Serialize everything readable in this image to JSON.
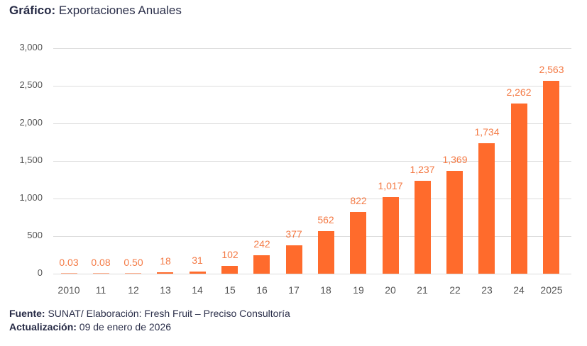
{
  "title": {
    "prefix": "Gráfico:",
    "text": " Exportaciones Anuales"
  },
  "chart_data": {
    "type": "bar",
    "title": "Gráfico: Exportaciones Anuales",
    "xlabel": "",
    "ylabel": "",
    "categories": [
      "2010",
      "11",
      "12",
      "13",
      "14",
      "15",
      "16",
      "17",
      "18",
      "19",
      "20",
      "21",
      "22",
      "23",
      "24",
      "2025"
    ],
    "values": [
      0.03,
      0.08,
      0.5,
      18,
      31,
      102,
      242,
      377,
      562,
      822,
      1017,
      1237,
      1369,
      1734,
      2262,
      2563
    ],
    "value_labels": [
      "0.03",
      "0.08",
      "0.50",
      "18",
      "31",
      "102",
      "242",
      "377",
      "562",
      "822",
      "1,017",
      "1,237",
      "1,369",
      "1,734",
      "2,262",
      "2,563"
    ],
    "ylim": [
      0,
      3000
    ],
    "yticks": [
      "0",
      "500",
      "1,000",
      "1,500",
      "2,000",
      "2,500",
      "3,000"
    ],
    "ytick_values": [
      0,
      500,
      1000,
      1500,
      2000,
      2500,
      3000
    ],
    "grid": true,
    "legend": null,
    "bar_color": "#ff6b2c",
    "label_color": "#f47a45"
  },
  "footer": {
    "source_label": "Fuente:",
    "source_text": " SUNAT/ Elaboración: Fresh Fruit – Preciso Consultoría",
    "update_label": "Actualización:",
    "update_text": " 09 de enero de 2026"
  }
}
